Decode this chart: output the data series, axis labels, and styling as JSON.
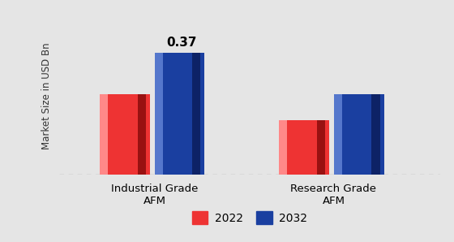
{
  "categories": [
    "Industrial Grade\nAFM",
    "Research Grade\nAFM"
  ],
  "values_2022": [
    0.245,
    0.165
  ],
  "values_2032": [
    0.37,
    0.245
  ],
  "color_2022": "#ee3333",
  "color_2032": "#1a3fa0",
  "bar_annotation": "0.37",
  "ylabel": "Market Size in USD Bn",
  "ylim": [
    0,
    0.48
  ],
  "background_color": "#e5e5e5",
  "legend_labels": [
    "2022",
    "2032"
  ],
  "bar_width": 0.12,
  "group_positions": [
    0.25,
    0.72
  ],
  "xlim": [
    0.0,
    1.0
  ]
}
